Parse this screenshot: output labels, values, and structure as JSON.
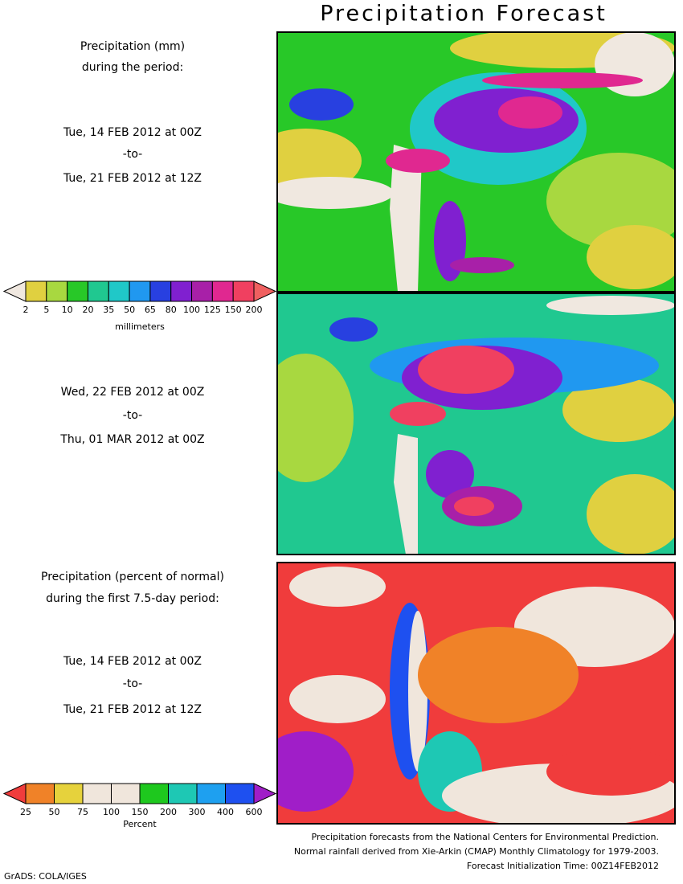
{
  "title": "Precipitation Forecast",
  "panels": [
    {
      "heading": [
        "Precipitation (mm)",
        "during the period:"
      ],
      "start": "Tue, 14 FEB 2012 at 00Z",
      "separator": "-to-",
      "end": "Tue, 21 FEB 2012 at 12Z"
    },
    {
      "start": "Wed, 22 FEB 2012 at 00Z",
      "separator": "-to-",
      "end": "Thu, 01 MAR 2012 at 00Z"
    },
    {
      "heading": [
        "Precipitation (percent of normal)",
        "during the first 7.5-day period:"
      ],
      "start": "Tue, 14 FEB 2012 at 00Z",
      "separator": "-to-",
      "end": "Tue, 21 FEB 2012 at 12Z"
    }
  ],
  "legends": [
    {
      "colors": [
        "#f0e8e0",
        "#e0d040",
        "#a8d840",
        "#28c828",
        "#20c890",
        "#20c8c8",
        "#2098f0",
        "#2840e0",
        "#8020d0",
        "#a820a8",
        "#e02890",
        "#f04060",
        "#f06060"
      ],
      "labels": [
        "2",
        "5",
        "10",
        "20",
        "35",
        "50",
        "65",
        "80",
        "100",
        "125",
        "150",
        "200"
      ],
      "unit": "millimeters"
    },
    {
      "colors": [
        "#f03c3c",
        "#f08228",
        "#e6d23c",
        "#f0e6dc",
        "#f0e6dc",
        "#1ec81e",
        "#1ec8b4",
        "#1ea0f0",
        "#1e50f0",
        "#a01ec8"
      ],
      "labels": [
        "25",
        "50",
        "75",
        "100",
        "150",
        "200",
        "300",
        "400",
        "600"
      ],
      "unit": "Percent"
    }
  ],
  "footer": [
    "Precipitation forecasts from the National Centers for Environmental Prediction.",
    "Normal rainfall derived from Xie-Arkin (CMAP) Monthly Climatology for 1979-2003.",
    "Forecast Initialization Time: 00Z14FEB2012"
  ],
  "credit": "GrADS: COLA/IGES"
}
